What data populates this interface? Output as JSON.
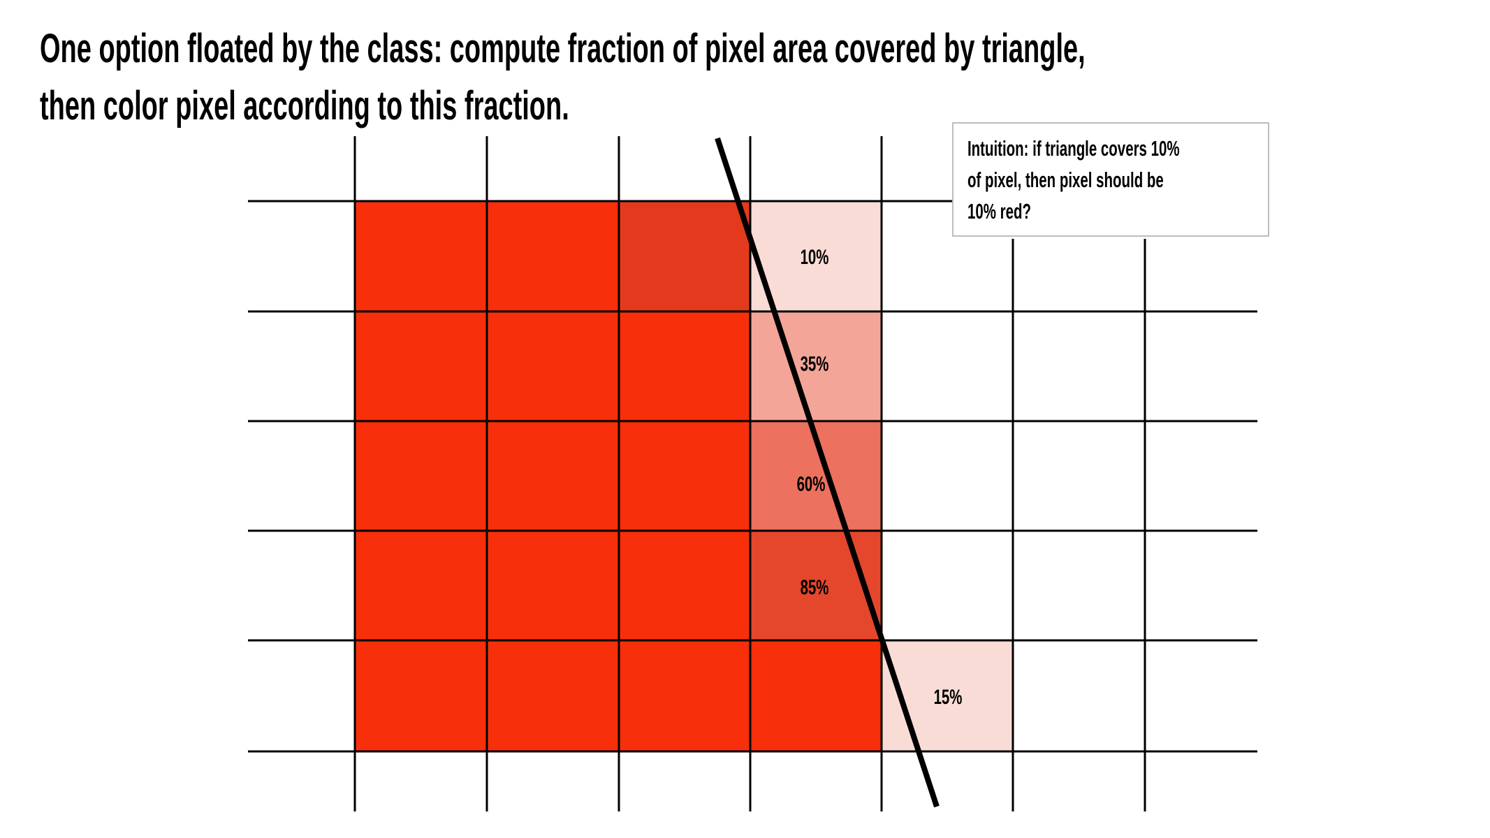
{
  "title": {
    "line1": "One option floated by the class: compute fraction of pixel area covered by triangle,",
    "line2": "then color pixel according to this fraction."
  },
  "callout": {
    "lines": [
      "Intuition: if triangle covers 10%",
      "of pixel, then pixel should be",
      "10% red?"
    ]
  },
  "colors": {
    "full": "#F72F0A",
    "edge_dark": "#E33A1E",
    "c10": "#FADCD7",
    "c35": "#F3A697",
    "c60": "#EC715E",
    "c85": "#E4472C",
    "c15": "#FADCD7"
  },
  "coverage_labels": [
    {
      "text": "10%",
      "fraction": 0.1
    },
    {
      "text": "35%",
      "fraction": 0.35
    },
    {
      "text": "60%",
      "fraction": 0.6
    },
    {
      "text": "85%",
      "fraction": 0.85
    },
    {
      "text": "15%",
      "fraction": 0.15
    }
  ]
}
